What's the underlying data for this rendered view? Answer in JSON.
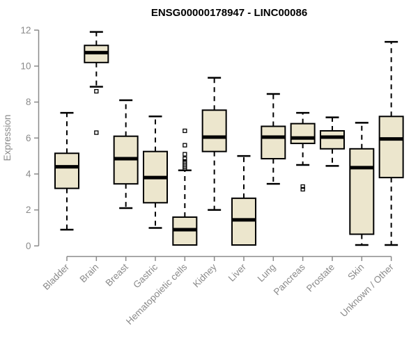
{
  "chart_data": {
    "type": "boxplot",
    "title": "ENSG00000178947 - LINC00086",
    "ylabel": "Expression",
    "xlabel": "",
    "ylim": [
      0,
      12
    ],
    "yticks": [
      0,
      2,
      4,
      6,
      8,
      10,
      12
    ],
    "grid": false,
    "legend_position": "none",
    "categories": [
      "Bladder",
      "Brain",
      "Breast",
      "Gastric",
      "Hematopoietic cells",
      "Kidney",
      "Liver",
      "Lung",
      "Pancreas",
      "Prostate",
      "Skin",
      "Unknown / Other"
    ],
    "series": [
      {
        "name": "Bladder",
        "low": 0.9,
        "q1": 3.2,
        "median": 4.4,
        "q3": 5.15,
        "high": 7.4,
        "outliers": []
      },
      {
        "name": "Brain",
        "low": 8.85,
        "q1": 10.2,
        "median": 10.75,
        "q3": 11.15,
        "high": 11.9,
        "outliers": [
          8.6,
          6.3
        ]
      },
      {
        "name": "Breast",
        "low": 2.1,
        "q1": 3.45,
        "median": 4.85,
        "q3": 6.1,
        "high": 8.1,
        "outliers": []
      },
      {
        "name": "Gastric",
        "low": 1.0,
        "q1": 2.4,
        "median": 3.8,
        "q3": 5.25,
        "high": 7.2,
        "outliers": []
      },
      {
        "name": "Hematopoietic cells",
        "low": 0.05,
        "q1": 0.05,
        "median": 0.9,
        "q3": 1.6,
        "high": 4.2,
        "outliers": [
          6.4,
          5.6,
          5.1,
          4.85,
          4.7,
          4.6,
          4.5,
          4.4,
          4.3
        ]
      },
      {
        "name": "Kidney",
        "low": 2.0,
        "q1": 5.25,
        "median": 6.05,
        "q3": 7.55,
        "high": 9.35,
        "outliers": []
      },
      {
        "name": "Liver",
        "low": 0.05,
        "q1": 0.05,
        "median": 1.45,
        "q3": 2.65,
        "high": 5.0,
        "outliers": []
      },
      {
        "name": "Lung",
        "low": 3.45,
        "q1": 4.85,
        "median": 6.05,
        "q3": 6.65,
        "high": 8.45,
        "outliers": []
      },
      {
        "name": "Pancreas",
        "low": 4.5,
        "q1": 5.7,
        "median": 6.0,
        "q3": 6.8,
        "high": 7.4,
        "outliers": [
          3.3,
          3.15
        ]
      },
      {
        "name": "Prostate",
        "low": 4.45,
        "q1": 5.4,
        "median": 6.05,
        "q3": 6.4,
        "high": 7.15,
        "outliers": []
      },
      {
        "name": "Skin",
        "low": 0.05,
        "q1": 0.65,
        "median": 4.35,
        "q3": 5.4,
        "high": 6.85,
        "outliers": []
      },
      {
        "name": "Unknown / Other",
        "low": 0.05,
        "q1": 3.8,
        "median": 5.95,
        "q3": 7.2,
        "high": 11.35,
        "outliers": []
      }
    ],
    "colors": {
      "box_fill": "#ECE6CD",
      "box_border": "#000000",
      "median": "#000000",
      "whisker": "#000000",
      "axis": "#8A8A8A",
      "tick_label": "#8A8A8A",
      "title": "#000000",
      "background": "#FFFFFF"
    }
  }
}
